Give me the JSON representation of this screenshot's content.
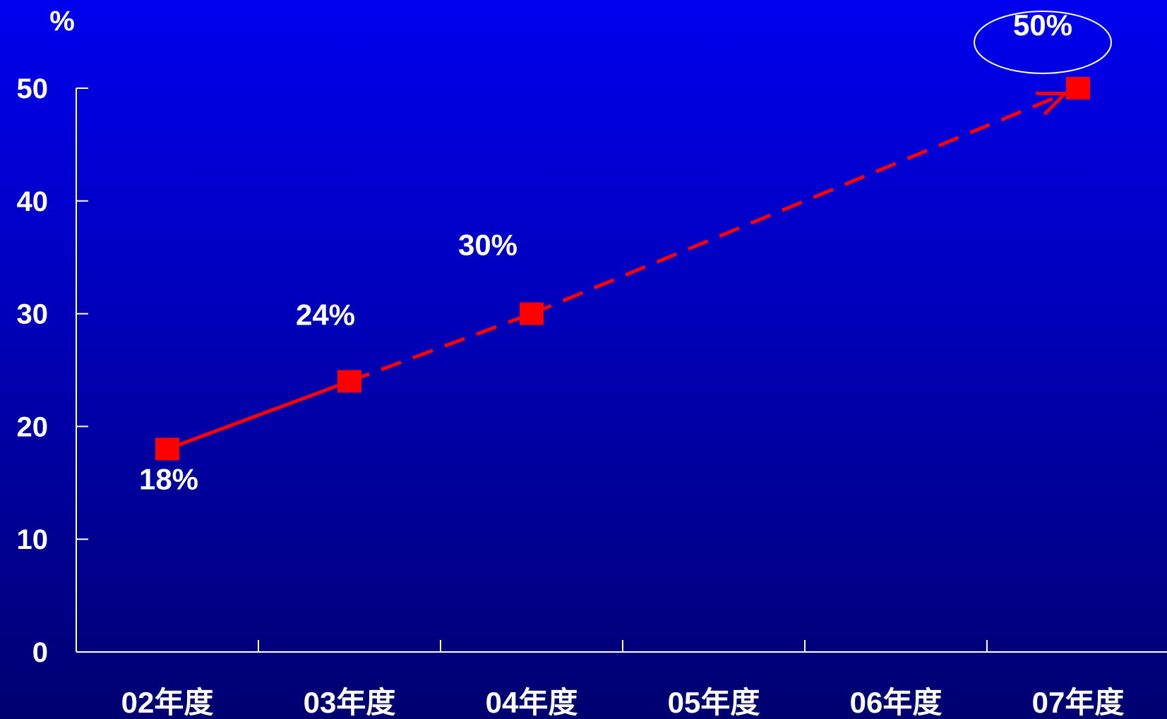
{
  "chart_data": {
    "type": "line",
    "ylabel": "%",
    "xlabel": "",
    "title": "",
    "ylim": [
      0,
      50
    ],
    "yticks": [
      "0",
      "10",
      "20",
      "30",
      "40",
      "50"
    ],
    "categories": [
      "02年度",
      "03年度",
      "04年度",
      "05年度",
      "06年度",
      "07年度"
    ],
    "series": [
      {
        "color": "#ff0000",
        "points": [
          {
            "category": "02年度",
            "value": 18,
            "label": "18%",
            "line_to_next": "solid"
          },
          {
            "category": "03年度",
            "value": 24,
            "label": "24%",
            "line_to_next": "dashed"
          },
          {
            "category": "04年度",
            "value": 30,
            "label": "30%",
            "line_to_next": "dashed"
          },
          {
            "category": "07年度",
            "value": 50,
            "label": "50%",
            "line_to_next": null
          }
        ]
      }
    ],
    "annotations": [
      {
        "text": "50%",
        "style": "ellipse-outline",
        "target": "07年度"
      }
    ],
    "colors": {
      "axis": "#ffffff",
      "text": "#ffffff",
      "series": "#ff0000",
      "background_top": "#0000ee",
      "background_bottom": "#000070"
    }
  }
}
